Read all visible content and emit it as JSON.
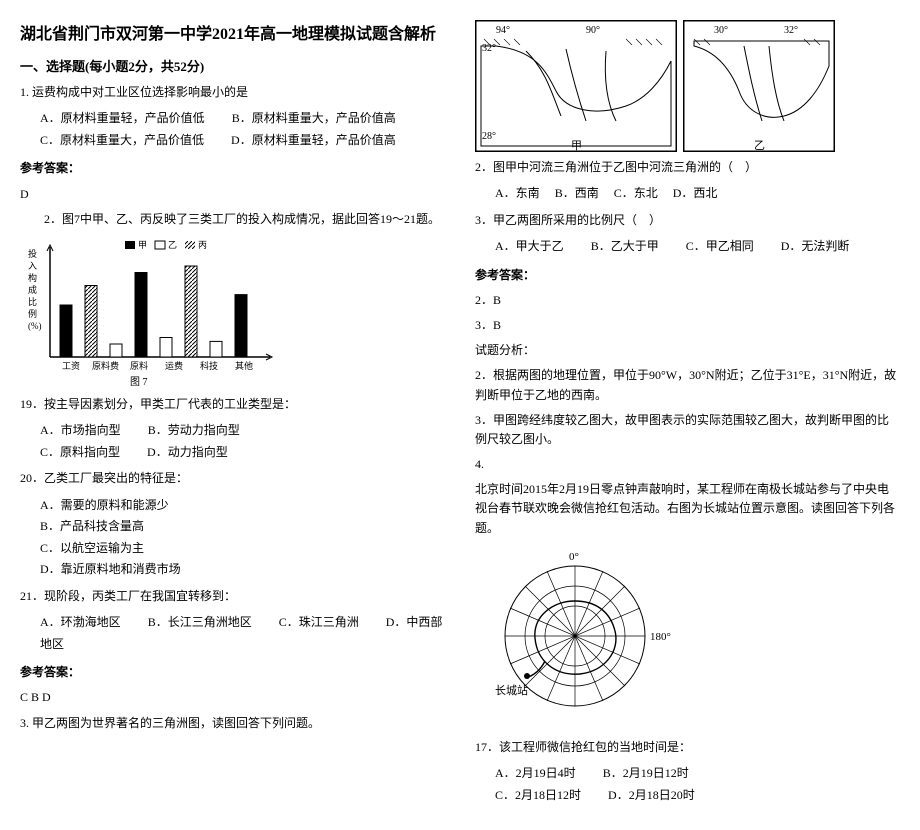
{
  "title": "湖北省荆门市双河第一中学2021年高一地理模拟试题含解析",
  "section1_title": "一、选择题(每小题2分，共52分)",
  "q1": {
    "stem": "1. 运费构成中对工业区位选择影响最小的是",
    "optA": "A．原材料重量轻，产品价值低",
    "optB": "B．原材料重量大，产品价值高",
    "optC": "C．原材料重量大，产品价值低",
    "optD": "D．原材料重量轻，产品价值高",
    "answer_label": "参考答案：",
    "answer": "D"
  },
  "q2intro": "2．图7中甲、乙、丙反映了三类工厂的投入构成情况，据此回答19～21题。",
  "chart": {
    "caption": "图 7",
    "bars": [
      40,
      55,
      10,
      65,
      15,
      70,
      12,
      48
    ],
    "hatch": [
      true,
      true,
      false,
      true,
      false,
      true,
      false,
      true
    ],
    "labels": [
      "工资",
      "原料费",
      "原料",
      "运费",
      "科技",
      "其他"
    ],
    "legend": [
      "甲",
      "乙",
      "丙"
    ],
    "ylabel": "投入构成比例(%)"
  },
  "q19": {
    "stem": "19．按主导因素划分，甲类工厂代表的工业类型是：",
    "optA": "A．市场指向型",
    "optB": "B．劳动力指向型",
    "optC": "C．原料指向型",
    "optD": "D．动力指向型"
  },
  "q20": {
    "stem": "20．乙类工厂最突出的特征是：",
    "optA": "A．需要的原料和能源少",
    "optB": "B．产品科技含量高",
    "optC": "C．以航空运输为主",
    "optD": "D．靠近原料地和消费市场"
  },
  "q21": {
    "stem": "21．现阶段，丙类工厂在我国宜转移到：",
    "optA": "A．环渤海地区",
    "optB": "B．长江三角洲地区",
    "optC": "C．珠江三角洲",
    "optD": "D．中西部地区",
    "answer_label": "参考答案：",
    "answer": "C  B  D"
  },
  "q3": "3. 甲乙两图为世界著名的三角洲图，读图回答下列问题。",
  "maps": {
    "lons1": [
      "94°",
      "90°"
    ],
    "lats1": [
      "32°",
      "28°"
    ],
    "lons2": [
      "30°",
      "32°"
    ],
    "cap1": "甲",
    "cap2": "乙"
  },
  "q3_2": {
    "stem": "2．图甲中河流三角洲位于乙图中河流三角洲的（　）",
    "optA": "A．东南",
    "optB": "B．西南",
    "optC": "C．东北",
    "optD": "D．西北"
  },
  "q3_3": {
    "stem": "3．甲乙两图所采用的比例尺（　）",
    "optA": "A．甲大于乙",
    "optB": "B．乙大于甲",
    "optC": "C．甲乙相同",
    "optD": "D．无法判断",
    "answer_label": "参考答案：",
    "answer1": "2．B",
    "answer2": "3．B"
  },
  "analysis_label": "试题分析：",
  "analysis2": "2．根据两图的地理位置，甲位于90°W，30°N附近；乙位于31°E，31°N附近，故判断甲位于乙地的西南。",
  "analysis3": "3．甲图跨经纬度较乙图大，故甲图表示的实际范围较乙图大，故判断甲图的比例尺较乙图小。",
  "q4": {
    "num": "4.",
    "stem": "北京时间2015年2月19日零点钟声敲响时，某工程师在南极长城站参与了中央电视台春节联欢晚会微信抢红包活动。右图为长城站位置示意图。读图回答下列各题。"
  },
  "polar": {
    "lon0": "0°",
    "lon180": "180°",
    "station": "长城站"
  },
  "q17": {
    "stem": "17．该工程师微信抢红包的当地时间是：",
    "optA": "A．2月19日4时",
    "optB": "B．2月19日12时",
    "optC": "C．2月18日12时",
    "optD": "D．2月18日20时"
  }
}
